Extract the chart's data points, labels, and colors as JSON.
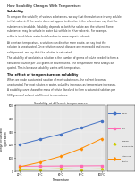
{
  "title": "How Solubility Changes With Temperature",
  "solubility_heading": "Solubility",
  "para1a": "To compare the solubility of various substances, we say that the substance is very soluble",
  "para1b": "in that solvent. If the solute does not appear to dissolve in the solvent, we say that the",
  "para1c": "substance is insoluble. Solubility depends on both the solute and the solvent. Some",
  "para1d": "substances may be soluble in water but soluble in other solvents. For example,",
  "para1e": "sulfur is insoluble in water but dissolves in some organic solvents.",
  "para2a": "At constant temperature, a solution can dissolve more solute, we say that the",
  "para2b": "solution is unsaturated. Once solution cannot dissolve any more solid and excess",
  "para2c": "solid present, we say that the solution is saturated.",
  "para3a": "The solubility of a solute is a solution is the number of grams of solute needed to form a",
  "para3b": "saturated solution per 100 grams of solvent used. The temperature must always be",
  "para3c": "quoted. This is because solubility varies with temperature.",
  "effect_heading": "The effect of temperature on solubility",
  "para4a": "When we make a saturated solution of most substances, the solvent becomes",
  "para4b": "unsaturated. For most solutes in water, solubility increases as temperature increases.",
  "para5a": "A solubility curve shows the mass of solute dissolved to form a saturated solution per",
  "para5b": "100 grams of solvent at different temperatures.",
  "chart_title": "Solubility at different temperatures",
  "xlabel": "Temperature",
  "ylabel_line1": "Weight of substance",
  "ylabel_line2": "(g per water)",
  "temperatures": [
    20,
    40,
    60,
    80,
    100
  ],
  "sugar": [
    200,
    240,
    280,
    330,
    380
  ],
  "salt": [
    35,
    36,
    37,
    38,
    39
  ],
  "sodium_bicarb": [
    9,
    12,
    16,
    13,
    15
  ],
  "potassium_nitrate": [
    30,
    65,
    110,
    170,
    245
  ],
  "series_labels": [
    "Sugar",
    "Salt",
    "Sodium\nbicarbonate",
    "Potassium\nnitrate"
  ],
  "series_colors": [
    "#4472C4",
    "#FF69B4",
    "#CCCC00",
    "#FF8C00"
  ],
  "series_markers": [
    "o",
    "s",
    "^",
    "d"
  ],
  "ylim": [
    0,
    500
  ],
  "yticks": [
    0,
    100,
    200,
    300,
    400,
    500
  ],
  "bg_color": "#FFFFFF",
  "pdf_bg": "#111111",
  "chart_bg": "#E8E8E8",
  "line_color": "#888888"
}
